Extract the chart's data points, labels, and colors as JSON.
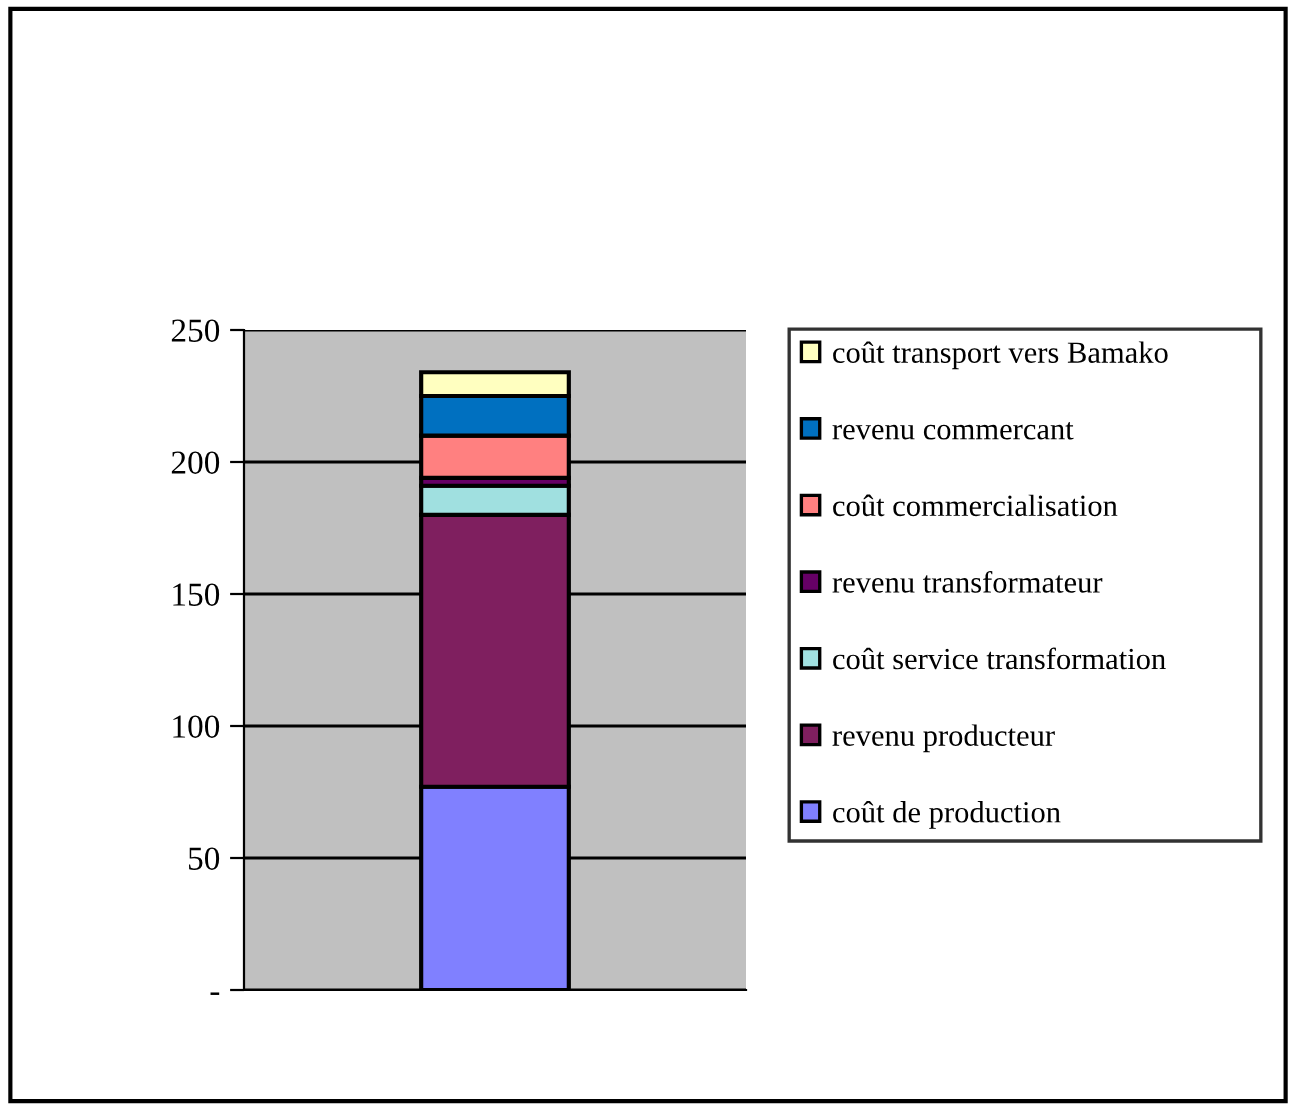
{
  "chart_data": {
    "type": "bar",
    "stacked": true,
    "categories": [
      null
    ],
    "series": [
      {
        "name": "coût de production",
        "color": "#8080ff",
        "values": [
          77
        ]
      },
      {
        "name": "revenu producteur",
        "color": "#7f1f5f",
        "values": [
          103
        ]
      },
      {
        "name": "coût service transformation",
        "color": "#a0e0e0",
        "values": [
          11
        ]
      },
      {
        "name": "revenu transformateur",
        "color": "#660066",
        "values": [
          3
        ]
      },
      {
        "name": "coût commercialisation",
        "color": "#ff8080",
        "values": [
          16
        ]
      },
      {
        "name": "revenu commercant",
        "color": "#0070c0",
        "values": [
          15
        ]
      },
      {
        "name": "coût transport vers Bamako",
        "color": "#ffffc0",
        "values": [
          9
        ]
      }
    ],
    "ylim": [
      0,
      250
    ],
    "yticks": [
      {
        "value": 0,
        "label": "-"
      },
      50,
      100,
      150,
      200,
      250
    ],
    "grid": "y",
    "legend": "right",
    "tick_labels": "y"
  }
}
